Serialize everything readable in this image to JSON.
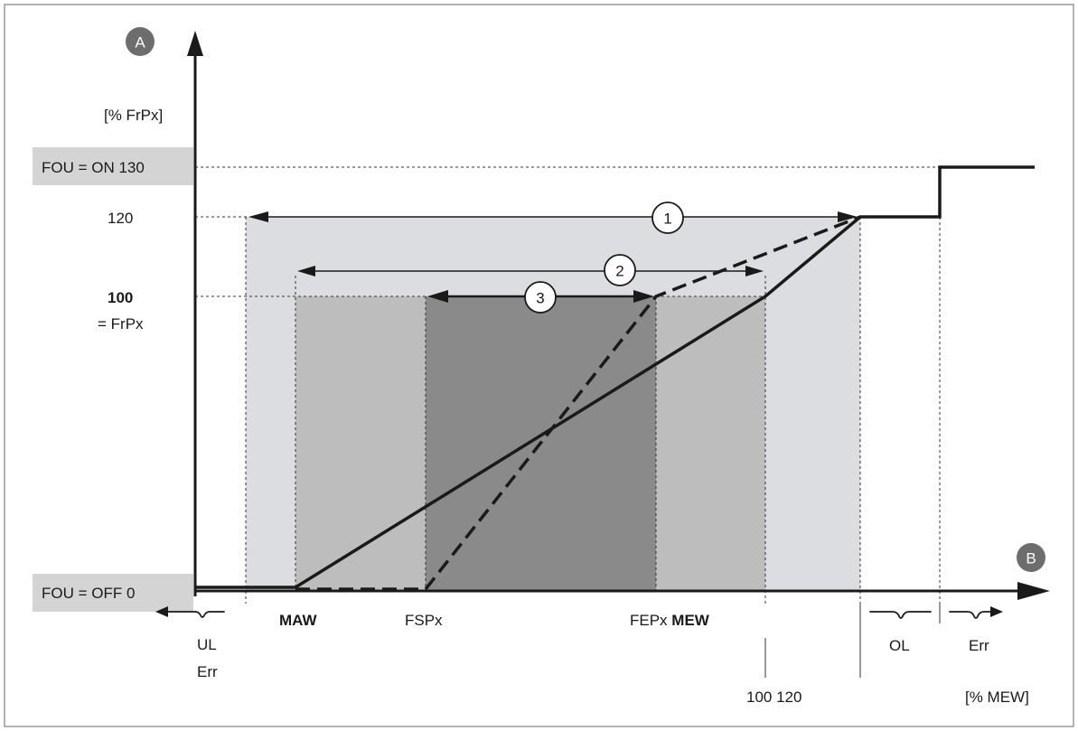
{
  "badges": {
    "y_axis": "A",
    "x_axis": "B"
  },
  "y_unit": "[% FrPx]",
  "x_unit": "[% MEW]",
  "y_labels": {
    "fou_on": "FOU = ON 130",
    "v120": "120",
    "v100": "100",
    "frpx": "= FrPx",
    "fou_off": "FOU = OFF 0"
  },
  "x_labels": {
    "maw": "MAW",
    "fspx": "FSPx",
    "fepx": "FEPx",
    "mew": "MEW",
    "v100_120": "100 120"
  },
  "regions": {
    "ul": "UL",
    "ul_err": "Err",
    "ol": "OL",
    "err": "Err"
  },
  "callouts": [
    "1",
    "2",
    "3"
  ],
  "colors": {
    "band_outer": "#dcdde0",
    "band_middle": "#bdbdbd",
    "band_inner": "#8a8a8a",
    "label_box": "#d4d4d4",
    "badge": "#6d6d6d",
    "line": "#1a1a1a"
  }
}
